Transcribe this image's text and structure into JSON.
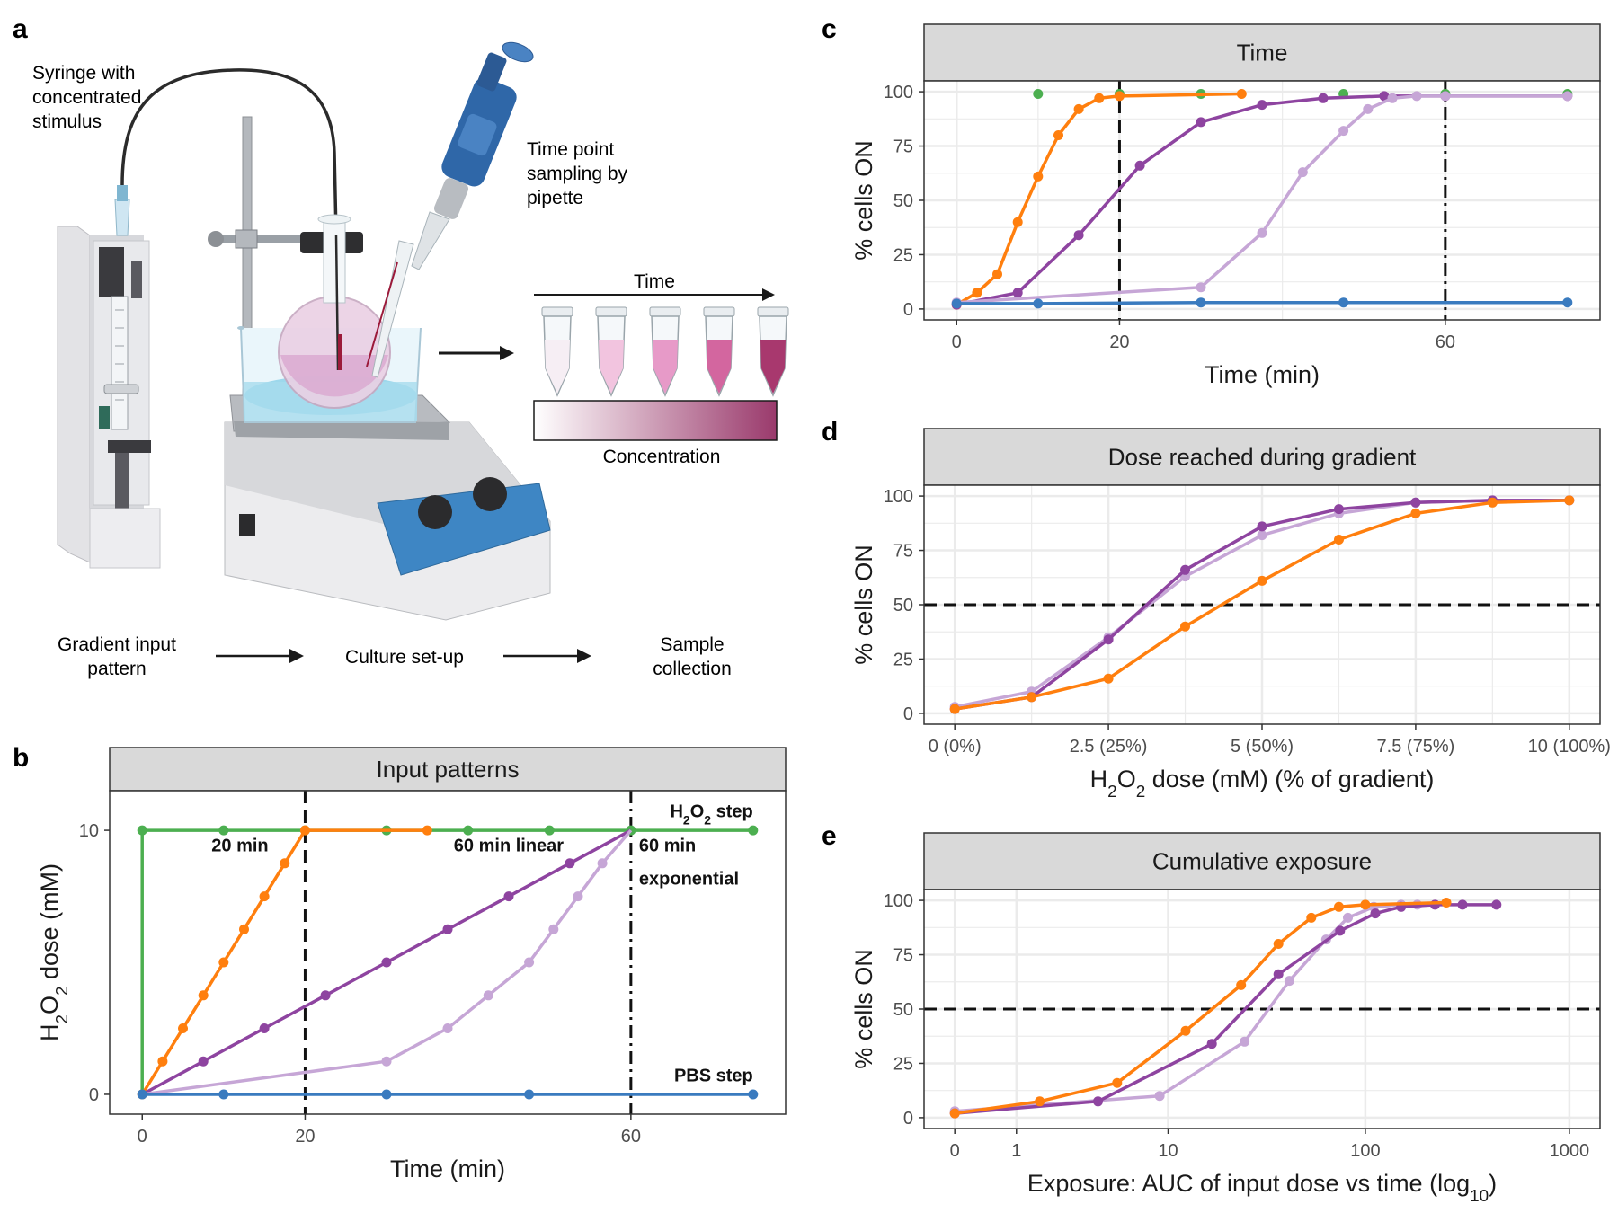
{
  "panel_letters": [
    "a",
    "b",
    "c",
    "d",
    "e"
  ],
  "setup": {
    "syringe_label": [
      "Syringe with",
      "concentrated",
      "stimulus"
    ],
    "pipette_label": [
      "Time point",
      "sampling by",
      "pipette"
    ],
    "time_label": "Time",
    "concentration_label": "Concentration",
    "flow_steps": [
      [
        "Gradient input",
        "pattern"
      ],
      [
        "Culture set-up"
      ],
      [
        "Sample",
        "collection"
      ]
    ],
    "tube_colors": [
      "#f6eef4",
      "#f2c4df",
      "#e79ac8",
      "#d3669f",
      "#a8386e"
    ],
    "gradient_colors": [
      "#ffffff",
      "#9a3a6c"
    ]
  },
  "colors": {
    "step": "#4caf50",
    "t20": "#ff7f0e",
    "t60lin": "#8e44a0",
    "t60exp": "#c6a6d6",
    "pbs": "#3a7bbf",
    "strip": "#d9d9d9",
    "grid": "#ebebeb"
  },
  "chart_data": [
    {
      "panel": "b",
      "type": "line",
      "title": "Input patterns",
      "xlabel": "Time (min)",
      "ylabel": "H2O2 dose (mM)",
      "ylabel_parts": [
        "H",
        "2",
        "O",
        "2",
        " dose (mM)"
      ],
      "xlim": [
        -4,
        79
      ],
      "ylim": [
        -0.75,
        11.5
      ],
      "xticks": [
        0,
        20,
        60
      ],
      "yticks": [
        0,
        10
      ],
      "grid": false,
      "vlines": [
        {
          "x": 20,
          "style": "dashed"
        },
        {
          "x": 60,
          "style": "dashdot"
        }
      ],
      "annotations": [
        {
          "text": "20 min",
          "x": 12,
          "y": 9.4,
          "anchor": "middle"
        },
        {
          "text": "60 min linear",
          "x": 45,
          "y": 9.4,
          "anchor": "middle"
        },
        {
          "text": "60 min",
          "x": 61,
          "y": 9.4,
          "anchor": "start"
        },
        {
          "text": "exponential",
          "x": 61,
          "y": 8.15,
          "anchor": "start"
        },
        {
          "text": "PBS step",
          "x": 75,
          "y": 0.7,
          "anchor": "end"
        }
      ],
      "annotation_h2o2_step": {
        "parts": [
          "H",
          "2",
          "O",
          "2",
          " step"
        ],
        "x": 75,
        "y": 10.7
      },
      "series": [
        {
          "color": "step",
          "x": [
            0,
            0,
            10,
            20,
            30,
            40,
            50,
            60,
            75
          ],
          "y": [
            0,
            10,
            10,
            10,
            10,
            10,
            10,
            10,
            10
          ],
          "points": [
            1,
            2,
            3,
            4,
            5,
            6,
            7,
            8
          ]
        },
        {
          "color": "t20",
          "x": [
            0,
            2.5,
            5,
            7.5,
            10,
            12.5,
            15,
            17.5,
            20,
            20,
            35
          ],
          "y": [
            0,
            1.25,
            2.5,
            3.75,
            5,
            6.25,
            7.5,
            8.75,
            10,
            10,
            10
          ],
          "points": [
            0,
            1,
            2,
            3,
            4,
            5,
            6,
            7,
            8,
            10
          ]
        },
        {
          "color": "t60lin",
          "x": [
            0,
            7.5,
            15,
            22.5,
            30,
            37.5,
            45,
            52.5,
            60
          ],
          "y": [
            0,
            1.25,
            2.5,
            3.75,
            5,
            6.25,
            7.5,
            8.75,
            10
          ],
          "points": [
            1,
            2,
            3,
            4,
            5,
            6,
            7
          ]
        },
        {
          "color": "t60exp",
          "x": [
            0,
            30,
            37.5,
            42.5,
            47.5,
            50.5,
            53.5,
            56.5,
            60
          ],
          "y": [
            0,
            1.25,
            2.5,
            3.75,
            5,
            6.25,
            7.5,
            8.75,
            10
          ],
          "points": [
            1,
            2,
            3,
            4,
            5,
            6,
            7
          ]
        },
        {
          "color": "pbs",
          "x": [
            0,
            10,
            30,
            47.5,
            75
          ],
          "y": [
            0,
            0,
            0,
            0,
            0
          ],
          "points": [
            0,
            1,
            2,
            3,
            4
          ]
        }
      ]
    },
    {
      "panel": "c",
      "type": "line",
      "title": "Time",
      "xlabel": "Time (min)",
      "ylabel": "% cells ON",
      "xlim": [
        -4,
        79
      ],
      "ylim": [
        -5,
        105
      ],
      "xticks": [
        0,
        20,
        60
      ],
      "yticks": [
        0,
        25,
        50,
        75,
        100
      ],
      "grid": true,
      "vlines": [
        {
          "x": 20,
          "style": "dashed"
        },
        {
          "x": 60,
          "style": "dashdot"
        }
      ],
      "series": [
        {
          "color": "step",
          "x": [
            10,
            20,
            30,
            47.5,
            60,
            75
          ],
          "y": [
            99,
            99,
            99,
            99,
            99,
            99
          ],
          "line": false
        },
        {
          "color": "t20",
          "x": [
            0,
            2.5,
            5,
            7.5,
            10,
            12.5,
            15,
            17.5,
            20,
            35
          ],
          "y": [
            2,
            7.5,
            16,
            40,
            61,
            80,
            92,
            97,
            98,
            99
          ]
        },
        {
          "color": "t60lin",
          "x": [
            0,
            7.5,
            15,
            22.5,
            30,
            37.5,
            45,
            52.5,
            60,
            75
          ],
          "y": [
            2,
            7.5,
            34,
            66,
            86,
            94,
            97,
            98,
            98,
            98
          ]
        },
        {
          "color": "t60exp",
          "x": [
            0,
            30,
            37.5,
            42.5,
            47.5,
            50.5,
            53.5,
            56.5,
            60,
            75
          ],
          "y": [
            3,
            10,
            35,
            63,
            82,
            92,
            97,
            98,
            98,
            98
          ]
        },
        {
          "color": "pbs",
          "x": [
            0,
            10,
            30,
            47.5,
            75
          ],
          "y": [
            2.5,
            2.5,
            3,
            3,
            3
          ]
        }
      ]
    },
    {
      "panel": "d",
      "type": "line",
      "title": "Dose reached during gradient",
      "xlabel": "H2O2 dose (mM) (% of gradient)",
      "xlabel_parts": [
        "H",
        "2",
        "O",
        "2",
        " dose (mM) (% of gradient)"
      ],
      "ylabel": "% cells ON",
      "xlim": [
        -0.5,
        10.5
      ],
      "ylim": [
        -5,
        105
      ],
      "xticks": [
        0,
        2.5,
        5,
        7.5,
        10
      ],
      "xtick_labels": [
        "0 (0%)",
        "2.5 (25%)",
        "5 (50%)",
        "7.5 (75%)",
        "10 (100%)"
      ],
      "yticks": [
        0,
        25,
        50,
        75,
        100
      ],
      "grid": true,
      "hlines": [
        {
          "y": 50,
          "style": "dashed"
        }
      ],
      "series": [
        {
          "color": "t60exp",
          "x": [
            0,
            1.25,
            2.5,
            3.75,
            5,
            6.25,
            7.5,
            8.75,
            10
          ],
          "y": [
            3,
            10,
            35,
            63,
            82,
            92,
            97,
            98,
            98
          ],
          "line": true
        },
        {
          "color": "t60lin",
          "x": [
            0,
            1.25,
            2.5,
            3.75,
            5,
            6.25,
            7.5,
            8.75,
            10
          ],
          "y": [
            2,
            7.5,
            34,
            66,
            86,
            94,
            97,
            98,
            98
          ],
          "line": true
        },
        {
          "color": "t20",
          "x": [
            0,
            1.25,
            2.5,
            3.75,
            5,
            6.25,
            7.5,
            8.75,
            10
          ],
          "y": [
            2,
            7.5,
            16,
            40,
            61,
            80,
            92,
            97,
            98
          ],
          "line": true
        }
      ]
    },
    {
      "panel": "e",
      "type": "line",
      "title": "Cumulative exposure",
      "xlabel": "Exposure: AUC of input dose vs time (log10)",
      "xlabel_parts": [
        "Exposure: AUC of input dose vs time (log",
        "10",
        ")"
      ],
      "ylabel": "% cells ON",
      "xscale": "log10p1",
      "xlim_t": [
        -0.15,
        3.15
      ],
      "ylim": [
        -5,
        105
      ],
      "xticks": [
        0,
        1,
        10,
        100,
        1000
      ],
      "xtick_labels": [
        "0",
        "1",
        "10",
        "100",
        "1000"
      ],
      "yticks": [
        0,
        25,
        50,
        75,
        100
      ],
      "grid": true,
      "hlines": [
        {
          "y": 50,
          "style": "dashed"
        }
      ],
      "series": [
        {
          "color": "t60exp",
          "x": [
            0,
            9,
            25,
            42,
            64,
            82,
            110,
            150,
            180
          ],
          "y": [
            3,
            10,
            35,
            63,
            82,
            92,
            97,
            98,
            98
          ]
        },
        {
          "color": "t60lin",
          "x": [
            0,
            4,
            17,
            37,
            75,
            112,
            150,
            220,
            300,
            440
          ],
          "y": [
            2,
            7.5,
            34,
            66,
            86,
            94,
            97,
            98,
            98,
            98
          ]
        },
        {
          "color": "t20",
          "x": [
            0,
            1.6,
            5.2,
            12.4,
            24,
            37,
            54,
            74,
            100,
            250
          ],
          "y": [
            2,
            7.5,
            16,
            40,
            61,
            80,
            92,
            97,
            98,
            99
          ]
        }
      ]
    }
  ]
}
